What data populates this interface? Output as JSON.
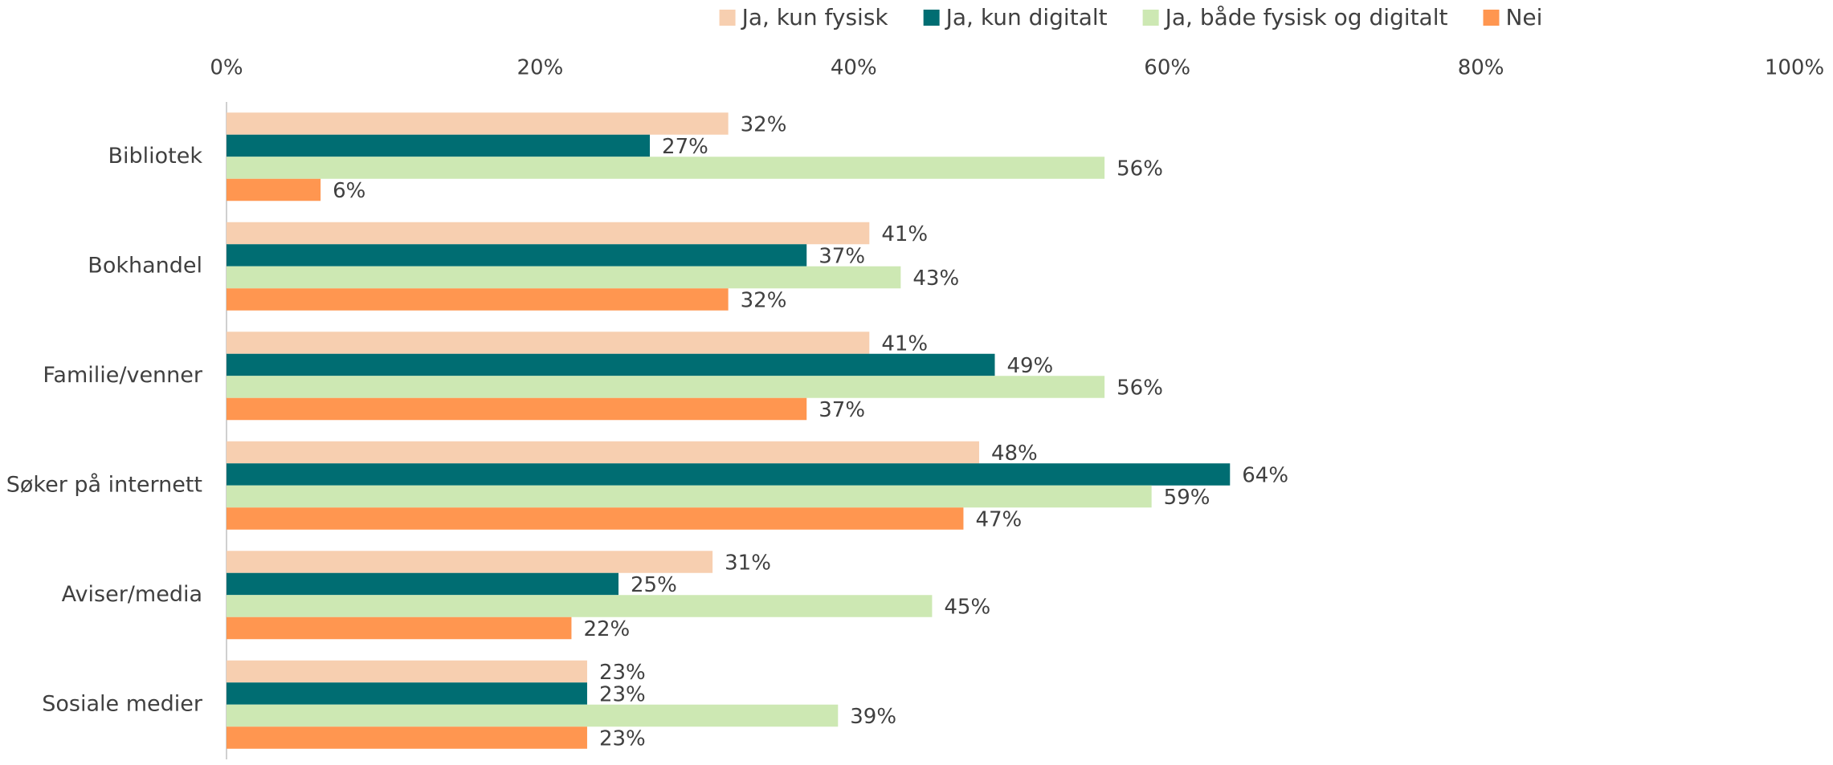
{
  "chart_data": {
    "type": "hbar",
    "categories": [
      "Bibliotek",
      "Bokhandel",
      "Familie/venner",
      "Søker på internett",
      "Aviser/media",
      "Sosiale medier"
    ],
    "series": [
      {
        "name": "Ja, kun fysisk",
        "color": "#f7cfb0",
        "values": [
          32,
          41,
          41,
          48,
          31,
          23
        ],
        "value_labels": [
          "32%",
          "41%",
          "41%",
          "48%",
          "31%",
          "23%"
        ]
      },
      {
        "name": "Ja, kun digitalt",
        "color": "#006d72",
        "values": [
          27,
          37,
          49,
          64,
          25,
          23
        ],
        "value_labels": [
          "27%",
          "37%",
          "49%",
          "64%",
          "25%",
          "23%"
        ]
      },
      {
        "name": "Ja, både fysisk og digitalt",
        "color": "#cde8b3",
        "values": [
          56,
          43,
          56,
          59,
          45,
          39
        ],
        "value_labels": [
          "56%",
          "43%",
          "56%",
          "59%",
          "45%",
          "39%"
        ]
      },
      {
        "name": "Nei",
        "color": "#ff9650",
        "values": [
          6,
          32,
          37,
          47,
          22,
          23
        ],
        "value_labels": [
          "6%",
          "32%",
          "37%",
          "47%",
          "22%",
          "23%"
        ]
      }
    ],
    "xlim": [
      0,
      100
    ],
    "xticks": [
      {
        "value": 0,
        "label": "0%"
      },
      {
        "value": 20,
        "label": "20%"
      },
      {
        "value": 40,
        "label": "40%"
      },
      {
        "value": 60,
        "label": "60%"
      },
      {
        "value": 80,
        "label": "80%"
      },
      {
        "value": 100,
        "label": "100%"
      }
    ],
    "legend": "top"
  }
}
